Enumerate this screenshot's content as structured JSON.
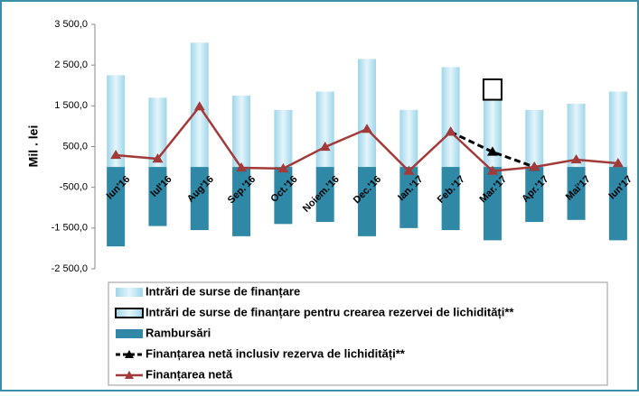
{
  "chart_data": {
    "type": "bar",
    "y_label": "Mil . lei",
    "categories": [
      "Iun'16",
      "Iul'16",
      "Aug'16",
      "Sep.'16",
      "Oct.'16",
      "Noiem.'16",
      "Dec.'16",
      "Ian.'17",
      "Feb.'17",
      "Mar.'17",
      "Apr.'17",
      "Mai'17",
      "Iun'17"
    ],
    "ylim": [
      -2500,
      3500
    ],
    "yticks": [
      {
        "value": -2500,
        "label": "-2 500,0"
      },
      {
        "value": -1500,
        "label": "-1 500,0"
      },
      {
        "value": -500,
        "label": "-500,0"
      },
      {
        "value": 500,
        "label": "500,0"
      },
      {
        "value": 1500,
        "label": "1 500,0"
      },
      {
        "value": 2500,
        "label": "2 500,0"
      },
      {
        "value": 3500,
        "label": "3 500,0"
      }
    ],
    "series": [
      {
        "name": "Intrări de surse de finanțare",
        "type": "bar",
        "color": "#bfe7f4",
        "values": [
          2250,
          1700,
          3050,
          1750,
          1400,
          1850,
          2650,
          1400,
          2450,
          1650,
          1400,
          1550,
          1850
        ]
      },
      {
        "name": "Intrări  de surse de finanțare pentru crearea rezervei de lichidități**",
        "type": "bar",
        "color": "#000000",
        "values": [
          null,
          null,
          null,
          null,
          null,
          null,
          null,
          null,
          null,
          500,
          null,
          null,
          null
        ]
      },
      {
        "name": "Rambursări",
        "type": "bar",
        "color": "#2e88a6",
        "values": [
          -1950,
          -1450,
          -1550,
          -1700,
          -1400,
          -1350,
          -1700,
          -1500,
          -1550,
          -1800,
          -1350,
          -1300,
          -1800
        ]
      },
      {
        "name": "Finanțarea netă inclusiv rezerva de lichidități**",
        "type": "line",
        "color": "#000000",
        "values": [
          null,
          null,
          null,
          null,
          null,
          null,
          null,
          null,
          860,
          370,
          0,
          null,
          null
        ]
      },
      {
        "name": "Finanțarea netă",
        "type": "line",
        "color": "#a33a3a",
        "values": [
          290,
          200,
          1480,
          -20,
          -40,
          490,
          930,
          -100,
          860,
          -100,
          0,
          180,
          90
        ]
      }
    ]
  }
}
